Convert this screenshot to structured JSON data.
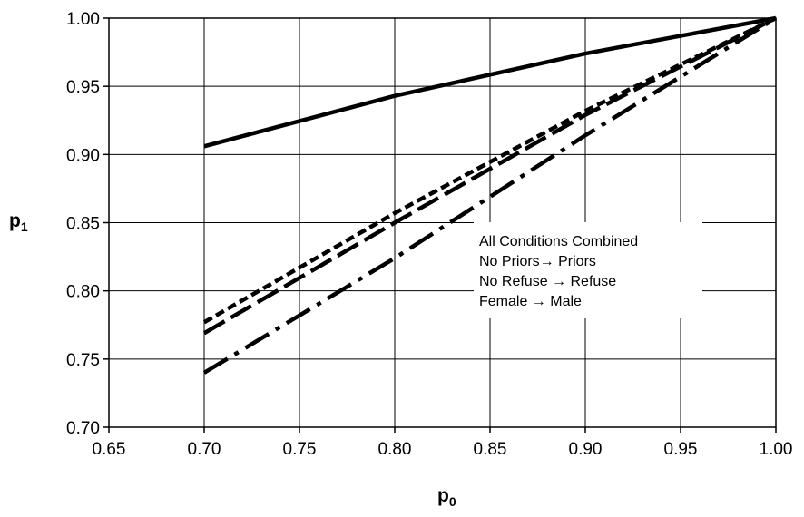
{
  "chart_data": {
    "type": "line",
    "title": "",
    "xlabel": "p",
    "xlabel_sub": "0",
    "ylabel": "p",
    "ylabel_sub": "1",
    "xlim": [
      0.65,
      1.0
    ],
    "ylim": [
      0.7,
      1.0
    ],
    "x_ticks": [
      "0.65",
      "0.70",
      "0.75",
      "0.80",
      "0.85",
      "0.90",
      "0.95",
      "1.00"
    ],
    "y_ticks": [
      "0.70",
      "0.75",
      "0.80",
      "0.85",
      "0.90",
      "0.95",
      "1.00"
    ],
    "grid": true,
    "legend_position": "lower-right",
    "series": [
      {
        "name": "All Conditions Combined",
        "dash": "solid",
        "color": "#000000",
        "x": [
          0.7,
          0.8,
          0.9,
          1.0
        ],
        "y": [
          0.906,
          0.943,
          0.974,
          1.0
        ]
      },
      {
        "name": "No  Priors→ Priors",
        "dash": "short-dash",
        "color": "#000000",
        "x": [
          0.7,
          0.8,
          0.9,
          1.0
        ],
        "y": [
          0.777,
          0.857,
          0.932,
          1.0
        ]
      },
      {
        "name": "No Refuse → Refuse",
        "dash": "long-dash",
        "color": "#000000",
        "x": [
          0.7,
          0.8,
          0.9,
          1.0
        ],
        "y": [
          0.769,
          0.85,
          0.929,
          1.0
        ]
      },
      {
        "name": "Female → Male",
        "dash": "dash-dot",
        "color": "#000000",
        "x": [
          0.7,
          0.8,
          0.9,
          1.0
        ],
        "y": [
          0.74,
          0.824,
          0.914,
          1.0
        ]
      }
    ]
  }
}
